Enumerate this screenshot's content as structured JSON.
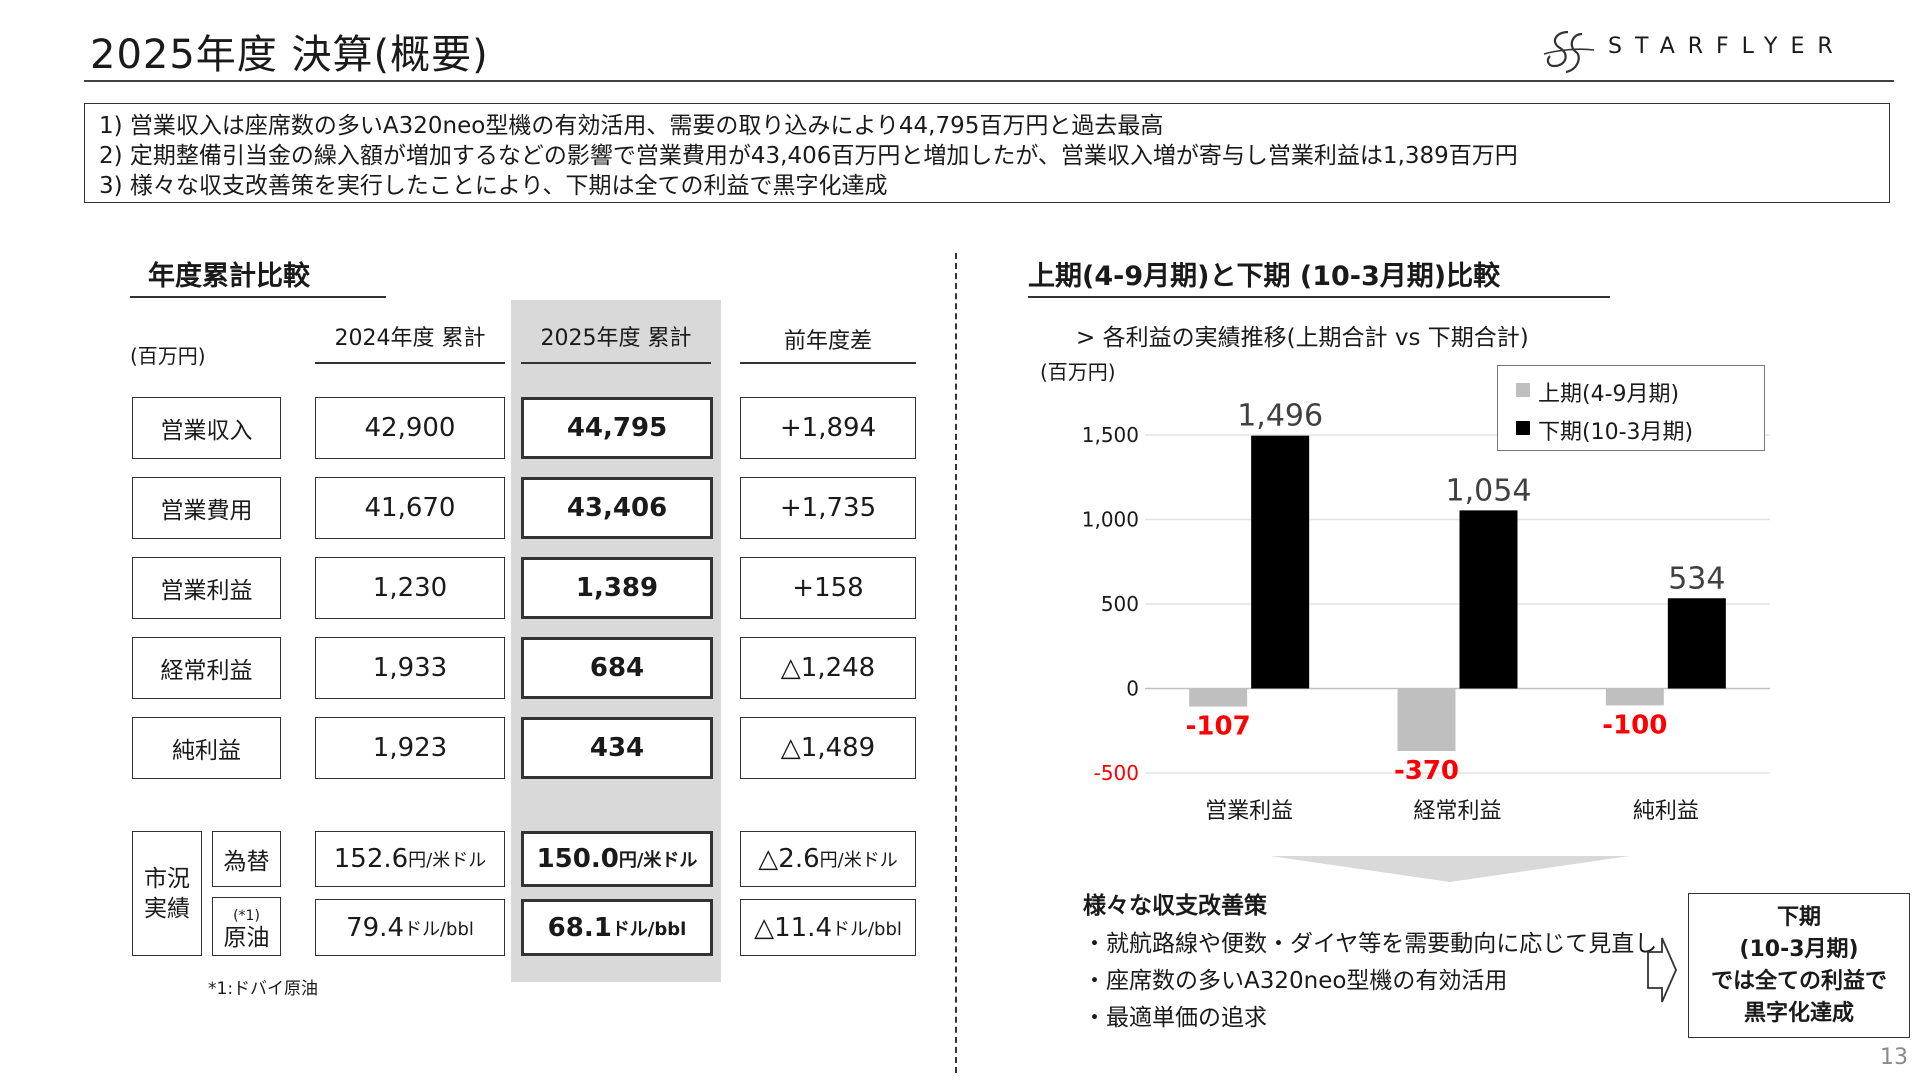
{
  "header": {
    "title": "2025年度 決算(概要)",
    "logo_text": "STARFLYER"
  },
  "summary": [
    "1) 営業収入は座席数の多いA320neo型機の有効活用、需要の取り込みにより44,795百万円と過去最高",
    "2) 定期整備引当金の繰入額が増加するなどの影響で営業費用が43,406百万円と増加したが、営業収入増が寄与し営業利益は1,389百万円",
    "3) 様々な収支改善策を実行したことにより、下期は全ての利益で黒字化達成"
  ],
  "left": {
    "section_title": "年度累計比較",
    "unit": "(百万円)",
    "col_2024": "2024年度 累計",
    "col_2025": "2025年度 累計",
    "col_diff": "前年度差",
    "rows": [
      {
        "label": "営業収入",
        "v2024": "42,900",
        "v2025": "44,795",
        "diff": "+1,894"
      },
      {
        "label": "営業費用",
        "v2024": "41,670",
        "v2025": "43,406",
        "diff": "+1,735"
      },
      {
        "label": "営業利益",
        "v2024": "1,230",
        "v2025": "1,389",
        "diff": "+158"
      },
      {
        "label": "経常利益",
        "v2024": "1,933",
        "v2025": "684",
        "diff": "△1,248"
      },
      {
        "label": "純利益",
        "v2024": "1,923",
        "v2025": "434",
        "diff": "△1,489"
      }
    ],
    "market": {
      "group_label_1": "市況",
      "group_label_2": "実績",
      "fx": {
        "label": "為替",
        "v2024": "152.6",
        "v2025": "150.0",
        "diff": "△2.6",
        "unit": "円/米ドル"
      },
      "oil": {
        "label": "原油",
        "note_mark": "(*1)",
        "v2024": "79.4",
        "v2025": "68.1",
        "diff": "△11.4",
        "unit": "ドル/bbl"
      }
    },
    "footnote": "*1:ドバイ原油"
  },
  "right": {
    "section_title": "上期(4-9月期)と下期 (10-3月期)比較",
    "chart_subtitle": "> 各利益の実績推移(上期合計 vs 下期合計)",
    "unit": "(百万円)",
    "legend": {
      "first_half": "上期(4-9月期)",
      "second_half": "下期(10-3月期)"
    },
    "improvement_title": "様々な収支改善策",
    "improvement_items": [
      "・就航路線や便数・ダイヤ等を需要動向に応じて見直し",
      "・座席数の多いA320neo型機の有効活用",
      "・最適単価の追求"
    ],
    "result_lines": [
      "下期",
      "(10-3月期)",
      "では全ての利益で",
      "黒字化達成"
    ]
  },
  "chart_data": {
    "type": "bar",
    "categories": [
      "営業利益",
      "経常利益",
      "純利益"
    ],
    "series": [
      {
        "name": "上期(4-9月期)",
        "values": [
          -107,
          -370,
          -100
        ],
        "color": "#bfbfbf"
      },
      {
        "name": "下期(10-3月期)",
        "values": [
          1496,
          1054,
          534
        ],
        "color": "#000000"
      }
    ],
    "value_labels": {
      "first_half": [
        "-107",
        "-370",
        "-100"
      ],
      "second_half": [
        "1,496",
        "1,054",
        "534"
      ]
    },
    "yticks": [
      1500,
      1000,
      500,
      0,
      -500
    ],
    "ytick_labels": [
      "1,500",
      "1,000",
      "500",
      "0",
      "-500"
    ],
    "ylim": [
      -500,
      1500
    ],
    "grid": true,
    "legend_position": "top-right",
    "negative_label_color": "#ff0000"
  },
  "page": {
    "number": "13"
  }
}
